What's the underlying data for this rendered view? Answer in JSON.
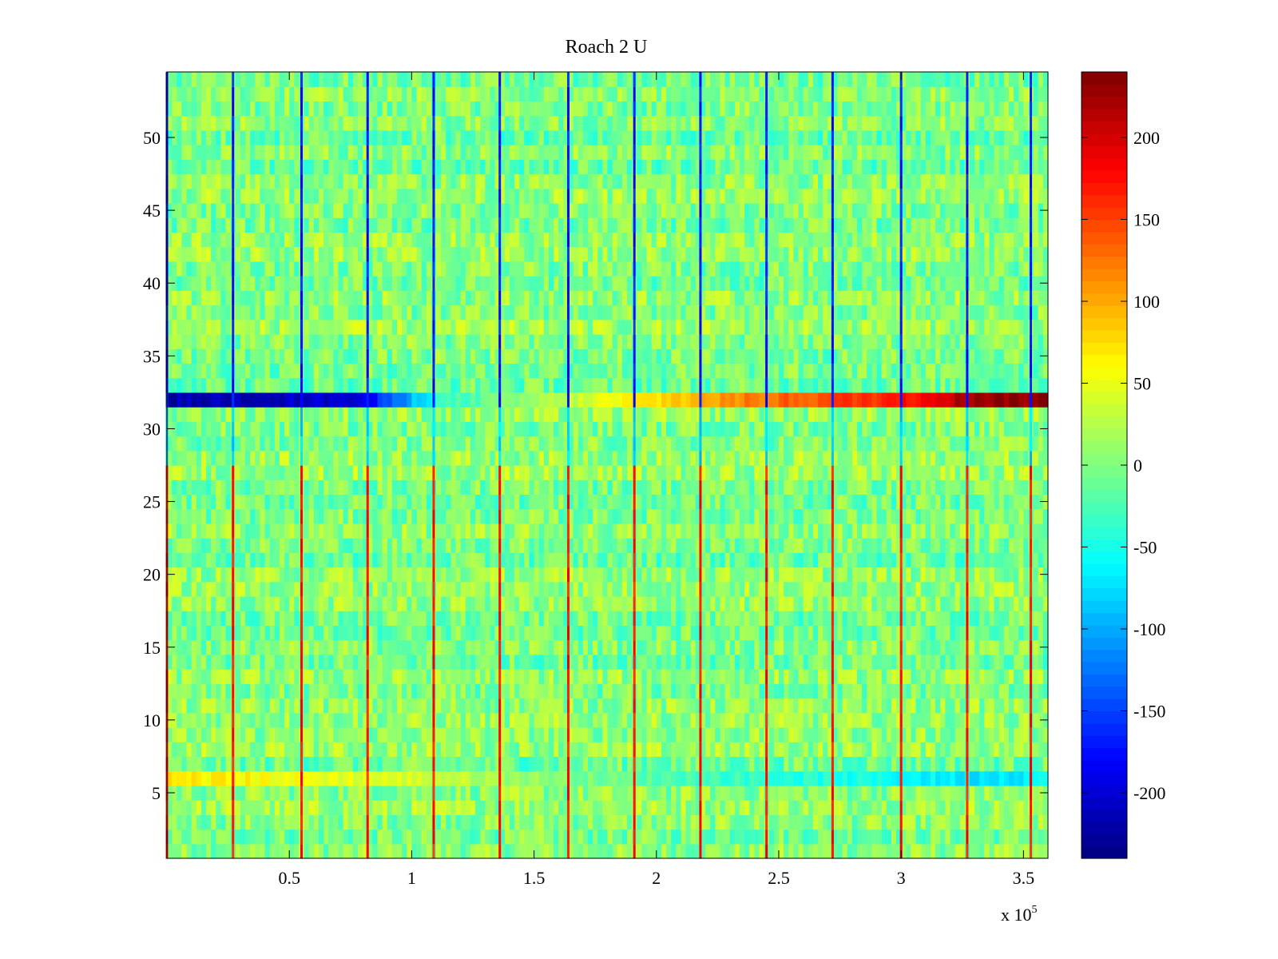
{
  "chart_data": {
    "type": "heatmap",
    "title": "Roach 2 U",
    "xlabel": "",
    "ylabel": "",
    "x_multiplier": "x 10",
    "x_multiplier_exponent": "5",
    "xlim": [
      0,
      3.6
    ],
    "ylim": [
      0.5,
      54.5
    ],
    "x_ticks": [
      0.5,
      1,
      1.5,
      2,
      2.5,
      3,
      3.5
    ],
    "x_tick_labels": [
      "0.5",
      "1",
      "1.5",
      "2",
      "2.5",
      "3",
      "3.5"
    ],
    "y_ticks": [
      5,
      10,
      15,
      20,
      25,
      30,
      35,
      40,
      45,
      50
    ],
    "y_tick_labels": [
      "5",
      "10",
      "15",
      "20",
      "25",
      "30",
      "35",
      "40",
      "45",
      "50"
    ],
    "n_rows": 54,
    "colorbar": {
      "colormap": "jet",
      "range": [
        -240,
        240
      ],
      "ticks": [
        -200,
        -150,
        -100,
        -50,
        0,
        50,
        100,
        150,
        200
      ],
      "tick_labels": [
        "-200",
        "-150",
        "-100",
        "-50",
        "0",
        "50",
        "100",
        "150",
        "200"
      ]
    },
    "periodic_spikes_x": [
      0.0,
      0.27,
      0.55,
      0.82,
      1.09,
      1.36,
      1.64,
      1.91,
      2.18,
      2.45,
      2.72,
      3.0,
      3.27,
      3.53
    ],
    "notable_rows": [
      {
        "row": 32,
        "description_values": [
          [
            0.0,
            -220
          ],
          [
            0.8,
            -200
          ],
          [
            1.1,
            -40
          ],
          [
            2.2,
            100
          ],
          [
            2.5,
            130
          ],
          [
            3.0,
            170
          ],
          [
            3.3,
            230
          ],
          [
            3.6,
            235
          ]
        ]
      },
      {
        "row": 6,
        "description_values": [
          [
            0.0,
            70
          ],
          [
            1.0,
            40
          ],
          [
            2.0,
            -20
          ],
          [
            3.3,
            -70
          ],
          [
            3.6,
            -60
          ]
        ]
      }
    ]
  }
}
